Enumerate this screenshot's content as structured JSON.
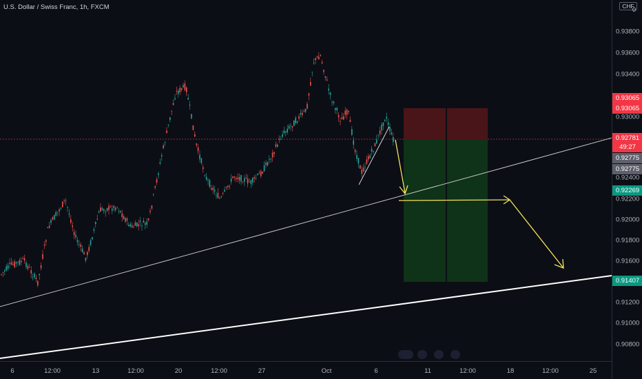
{
  "header": {
    "title": "U.S. Dollar / Swiss Franc, 1h, FXCM"
  },
  "price_axis": {
    "currency": "CHF",
    "currency_suffix": "0",
    "ticks": [
      "0.93800",
      "0.93600",
      "0.93400",
      "0.93000",
      "0.92400",
      "0.92200",
      "0.92000",
      "0.91800",
      "0.91600",
      "0.91200",
      "0.91000",
      "0.90800"
    ],
    "tags": {
      "stop_top": "0.93065",
      "stop_bottom": "0.93065",
      "last_price": "0.92781",
      "countdown": "49:27",
      "entry_top": "0.92775",
      "entry_bottom": "0.92775",
      "target_1": "0.92269",
      "target_2": "0.91407"
    }
  },
  "time_axis": {
    "labels": [
      "6",
      "12:00",
      "13",
      "12:00",
      "20",
      "12:00",
      "27",
      "Oct",
      "6",
      "11",
      "12:00",
      "18",
      "12:00",
      "25"
    ]
  },
  "colors": {
    "background": "#0c0e15",
    "up_candle": "#26a69a",
    "down_candle": "#ef5350",
    "stop_zone": "#4a1519",
    "profit_zone": "#0f3318",
    "arrow": "#f5e45c",
    "trendline": "#ffffff",
    "tag_red": "#f23645",
    "tag_green": "#089981",
    "tag_gray": "#5d606b"
  },
  "icons": [
    "price-scale-currency-icon",
    "timeline-scroll-controls-icon"
  ]
}
